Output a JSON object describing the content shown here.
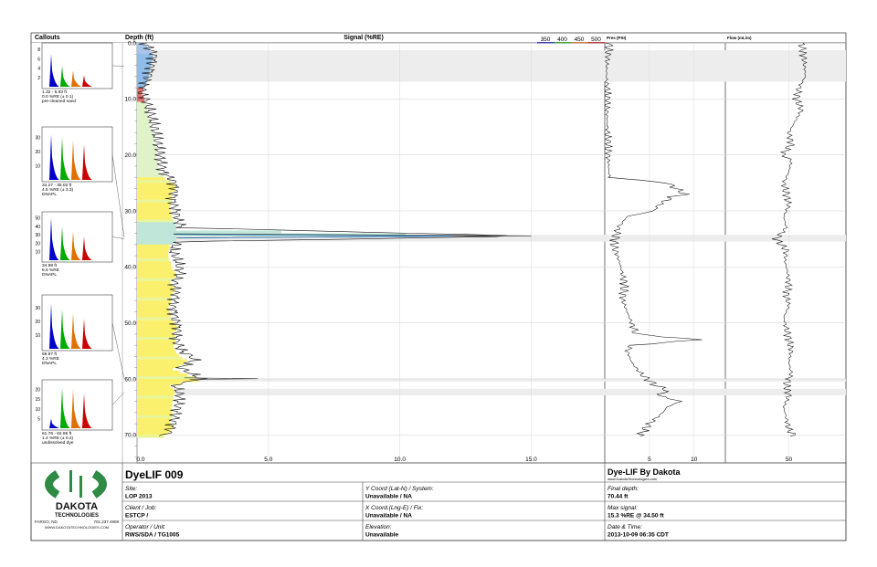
{
  "chart_data": {
    "type": "log",
    "headers": {
      "callouts": "Callouts",
      "depth": "Depth (ft)",
      "signal": "Signal (%RE)",
      "pressure": "Pres (PSI)",
      "flow": "Flow (mL/m)"
    },
    "wavelength_legend": [
      {
        "label": "350",
        "color": "#0000cc"
      },
      {
        "label": "400",
        "color": "#00aa00"
      },
      {
        "label": "450",
        "color": "#e07000"
      },
      {
        "label": "500",
        "color": "#cc0000"
      }
    ],
    "depth_ticks": [
      "0.0",
      "10.0",
      "20.0",
      "30.0",
      "40.0",
      "50.0",
      "60.0",
      "70.0"
    ],
    "depth_range": [
      0,
      75
    ],
    "signal_range": [
      0,
      17.8
    ],
    "signal_ticks": [
      "0.0",
      "5.0",
      "10.0",
      "15.0"
    ],
    "pressure_ticks": [
      "5",
      "10"
    ],
    "pressure_range": [
      0,
      13.5
    ],
    "flow_ticks": [
      "50"
    ],
    "flow_range": [
      0,
      95
    ],
    "signal": [
      [
        0,
        0.3
      ],
      [
        2,
        0.7
      ],
      [
        4,
        0.6
      ],
      [
        6,
        0.5
      ],
      [
        7.5,
        0.3
      ],
      [
        9,
        0.2
      ],
      [
        11,
        0.4
      ],
      [
        13,
        0.5
      ],
      [
        15,
        0.6
      ],
      [
        17,
        0.7
      ],
      [
        19,
        0.8
      ],
      [
        21,
        0.9
      ],
      [
        23,
        1.0
      ],
      [
        24.5,
        1.4
      ],
      [
        26,
        1.5
      ],
      [
        28,
        1.4
      ],
      [
        30,
        1.5
      ],
      [
        32,
        1.6
      ],
      [
        33,
        1.7
      ],
      [
        34.5,
        15.0
      ],
      [
        35.5,
        1.5
      ],
      [
        37,
        1.3
      ],
      [
        39,
        1.5
      ],
      [
        41,
        1.6
      ],
      [
        43,
        1.4
      ],
      [
        45,
        1.5
      ],
      [
        47,
        1.4
      ],
      [
        49,
        1.5
      ],
      [
        51,
        1.6
      ],
      [
        53,
        1.5
      ],
      [
        55,
        1.7
      ],
      [
        56.5,
        2.2
      ],
      [
        58,
        1.6
      ],
      [
        60,
        2.4
      ],
      [
        61,
        1.4
      ],
      [
        63,
        1.6
      ],
      [
        66,
        1.5
      ],
      [
        68,
        1.4
      ],
      [
        70,
        1.2
      ],
      [
        70.4,
        0.3
      ]
    ],
    "pressure": [
      [
        0,
        0.5
      ],
      [
        2,
        0.3
      ],
      [
        5,
        0.2
      ],
      [
        10,
        0.2
      ],
      [
        15,
        0.3
      ],
      [
        18,
        0.3
      ],
      [
        24,
        0.5
      ],
      [
        25,
        7.0
      ],
      [
        26,
        8.0
      ],
      [
        27,
        9.0
      ],
      [
        27.5,
        7.5
      ],
      [
        29,
        6.0
      ],
      [
        30,
        5.5
      ],
      [
        31,
        2.5
      ],
      [
        33,
        1.5
      ],
      [
        36,
        1.0
      ],
      [
        40,
        1.8
      ],
      [
        43,
        2.2
      ],
      [
        46,
        2.0
      ],
      [
        48,
        2.5
      ],
      [
        50,
        3.0
      ],
      [
        52,
        3.5
      ],
      [
        53,
        10.5
      ],
      [
        54,
        3.0
      ],
      [
        55,
        2.5
      ],
      [
        57,
        3.0
      ],
      [
        59,
        4.0
      ],
      [
        61,
        5.5
      ],
      [
        62,
        7.0
      ],
      [
        63,
        6.0
      ],
      [
        64,
        8.5
      ],
      [
        65,
        7.0
      ],
      [
        66,
        6.5
      ],
      [
        68,
        5.0
      ],
      [
        70,
        4.0
      ],
      [
        70.4,
        3.5
      ]
    ],
    "flow": [
      [
        0,
        60
      ],
      [
        3,
        62
      ],
      [
        6,
        63
      ],
      [
        8,
        58
      ],
      [
        10,
        56
      ],
      [
        12,
        60
      ],
      [
        14,
        55
      ],
      [
        16,
        50
      ],
      [
        18,
        52
      ],
      [
        20,
        45
      ],
      [
        21,
        52
      ],
      [
        23,
        50
      ],
      [
        25,
        46
      ],
      [
        27,
        48
      ],
      [
        29,
        50
      ],
      [
        31,
        46
      ],
      [
        33,
        48
      ],
      [
        35,
        40
      ],
      [
        37,
        48
      ],
      [
        39,
        47
      ],
      [
        41,
        49
      ],
      [
        43,
        50
      ],
      [
        45,
        48
      ],
      [
        47,
        50
      ],
      [
        49,
        46
      ],
      [
        51,
        48
      ],
      [
        53,
        50
      ],
      [
        55,
        52
      ],
      [
        57,
        50
      ],
      [
        59,
        52
      ],
      [
        61,
        48
      ],
      [
        63,
        50
      ],
      [
        65,
        46
      ],
      [
        67,
        48
      ],
      [
        69,
        50
      ],
      [
        70.4,
        55
      ]
    ],
    "callouts": [
      {
        "depth_range": [
          1.32,
          6.93
        ],
        "yticks": [
          "8",
          "6",
          "4",
          "2"
        ],
        "ymax": 9,
        "peaks": [
          7.0,
          4.5,
          3.5,
          2.5
        ],
        "lines": [
          "1.32 - 6.93 ft",
          "0.0 %RE (± 0.1)",
          "pre-cleaned sand"
        ]
      },
      {
        "depth_range": [
          34.27,
          35.02
        ],
        "yticks": [
          "30",
          "20",
          "10"
        ],
        "ymax": 36,
        "peaks": [
          32,
          30,
          28,
          25
        ],
        "lines": [
          "34.27 - 35.02 ft",
          "4.5 %RE (± 3.3)",
          "DNAPL"
        ]
      },
      {
        "depth_range": [
          34.98,
          34.98
        ],
        "yticks": [
          "50",
          "40",
          "30",
          "20",
          "10"
        ],
        "ymax": 55,
        "peaks": [
          50,
          40,
          34,
          28
        ],
        "lines": [
          "34.98 ft",
          "6.6 %RE",
          "DNAPL"
        ]
      },
      {
        "depth_range": [
          59.97,
          59.97
        ],
        "yticks": [
          "30",
          "20",
          "10"
        ],
        "ymax": 38,
        "peaks": [
          33,
          29,
          26,
          22
        ],
        "lines": [
          "59.97 ft",
          "4.3 %RE",
          "DNAPL"
        ]
      },
      {
        "depth_range": [
          61.76,
          62.95
        ],
        "yticks": [
          "20",
          "15",
          "10",
          "5"
        ],
        "ymax": 24,
        "peaks": [
          5,
          21,
          20,
          18
        ],
        "lines": [
          "61.76 - 62.95 ft",
          "1.4 %RE (± 0.2)",
          "undissolved dye"
        ]
      }
    ]
  },
  "footer": {
    "logo": {
      "name": "DAKOTA",
      "sub": "TECHNOLOGIES",
      "address_left": "FARGO, ND",
      "phone": "701.237.4908",
      "url": "WWW.DAKOTATECHNOLOGIES.COM"
    },
    "log_title": "DyeLIF 009",
    "brand_title": "Dye-LIF By Dakota",
    "brand_url": "www.DakotaTechnologies.com",
    "fields": {
      "site_label": "Site:",
      "site_value": "LOP 2013",
      "client_label": "Client / Job:",
      "client_value": "ESTCP /",
      "operator_label": "Operator / Unit:",
      "operator_value": "RWS/SDA / TG1005",
      "ycoord_label": "Y Coord (Lat-N) / System:",
      "ycoord_value": "Unavailable / NA",
      "xcoord_label": "X Coord.(Lng-E) / Fix:",
      "xcoord_value": "Unavailable / NA",
      "elevation_label": "Elevation:",
      "elevation_value": "Unavailable",
      "final_depth_label": "Final depth:",
      "final_depth_value": "70.44 ft",
      "max_signal_label": "Max signal:",
      "max_signal_value": "15.3 %RE @ 34.50 ft",
      "datetime_label": "Date & Time:",
      "datetime_value": "2013-10-09 06:35 CDT"
    }
  }
}
